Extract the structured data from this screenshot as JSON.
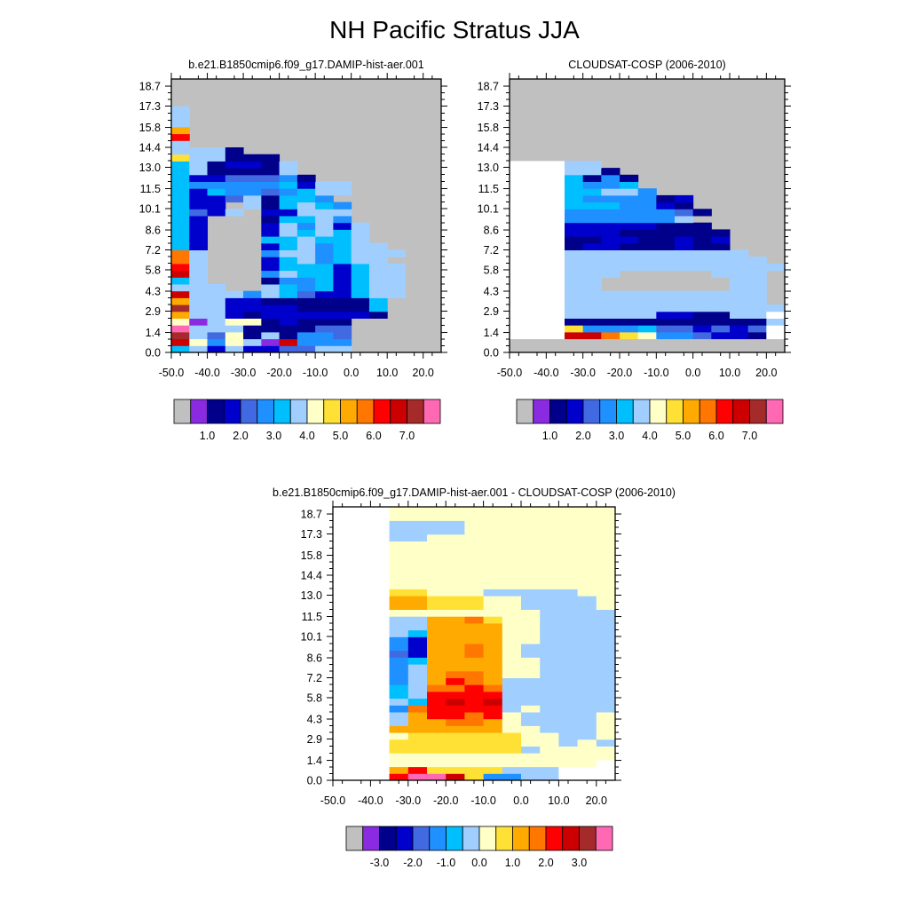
{
  "figure": {
    "title": "NH Pacific Stratus JJA"
  },
  "colors": {
    "missing": "#c0c0c0",
    "abs_palette": [
      "#c0c0c0",
      "#8a2be2",
      "#00008b",
      "#0000cd",
      "#4169e1",
      "#1e90ff",
      "#00bfff",
      "#a0cfff",
      "#ffffc8",
      "#ffe135",
      "#ffaa00",
      "#ff7700",
      "#ff0000",
      "#cc0000",
      "#a52a2a",
      "#ff69b4"
    ],
    "diff_palette": [
      "#c0c0c0",
      "#8a2be2",
      "#00008b",
      "#0000cd",
      "#4169e1",
      "#1e90ff",
      "#00bfff",
      "#a0cfff",
      "#ffffc8",
      "#ffe135",
      "#ffaa00",
      "#ff7700",
      "#ff0000",
      "#cc0000",
      "#a52a2a",
      "#ff69b4"
    ]
  },
  "chart_data": [
    {
      "type": "heatmap",
      "title": "b.e21.B1850cmip6.f09_g17.DAMIP-hist-aer.001",
      "xlabel": "",
      "ylabel": "",
      "x_ticks": [
        "-50.0",
        "-40.0",
        "-30.0",
        "-20.0",
        "-10.0",
        "0.0",
        "10.0",
        "20.0"
      ],
      "y_ticks": [
        "0.0",
        "1.4",
        "2.9",
        "4.3",
        "5.8",
        "7.2",
        "8.6",
        "10.1",
        "11.5",
        "13.0",
        "14.4",
        "15.8",
        "17.3",
        "18.7"
      ],
      "xlim": [
        -50,
        25
      ],
      "ylim": [
        0,
        19.2
      ],
      "x_bin_edges": [
        -50,
        -45,
        -40,
        -35,
        -30,
        -25,
        -20,
        -15,
        -10,
        -5,
        0,
        5,
        10,
        15,
        20,
        25
      ],
      "y_bin_edges": [
        0,
        0.48,
        0.96,
        1.44,
        1.92,
        2.4,
        2.88,
        3.36,
        3.84,
        4.32,
        4.8,
        5.28,
        5.76,
        6.24,
        6.72,
        7.2,
        7.68,
        8.16,
        8.64,
        9.12,
        9.6,
        10.08,
        10.56,
        11.04,
        11.52,
        12.0,
        12.48,
        12.96,
        13.44,
        13.92,
        14.4,
        14.88,
        15.36,
        15.84,
        16.32,
        16.8,
        17.28,
        17.76,
        18.24,
        18.72,
        19.2
      ],
      "colorbar": {
        "labels": [
          "1.0",
          "2.0",
          "3.0",
          "4.0",
          "5.0",
          "6.0",
          "7.0"
        ],
        "levels": [
          0.5,
          1.0,
          1.5,
          2.0,
          2.5,
          3.0,
          3.5,
          4.0,
          4.5,
          5.0,
          5.5,
          6.0,
          6.5,
          7.0
        ]
      },
      "rows": [
        "fgcgccddgg-----",
        "mhehg@meee-----",
        "ngdhbgbeed-----",
        "ogggbbbbdd-----",
        "haghhbcbbb-----",
        "jggcbccccccb---",
        "nggccccbbbbf---",
        "jggccbbbbbbf---",
        "mgggegfdccfgg--",
        "ggg--gfefcfgg--",
        "fg---beefcfgg--",
        "mg---egffcfgg--",
        "lg---cfffcfgg--",
        "kg---cfgefgg---",
        "kg---eggefggg--",
        "fc---cfgefgg---",
        "fc---ffgffg----",
        "fc---cgfgfg----",
        "fc---cgegcg----",
        "fc---bffge-----",
        "fdcg-ccggg-----",
        "fcc-gbfgfe-----",
        "fccdgbffe------",
        "fcfeedefgg-----",
        "feeeeefcgg-----",
        "fccdddeb-------",
        "fgbbbbg--------",
        "fgbccbg--------",
        "iggbbb---------",
        "gggb-----------",
        "g--------------",
        "l--------------",
        "j--------------",
        "g--------------",
        "g--------------",
        "g--------------",
        "---------------",
        "---------------",
        "---------------",
        "---------------"
      ]
    },
    {
      "type": "heatmap",
      "title": "CLOUDSAT-COSP (2006-2010)",
      "xlabel": "",
      "ylabel": "",
      "x_ticks": [
        "-50.0",
        "-40.0",
        "-30.0",
        "-20.0",
        "-10.0",
        "0.0",
        "10.0",
        "20.0"
      ],
      "y_ticks": [
        "0.0",
        "1.4",
        "2.9",
        "4.3",
        "5.8",
        "7.2",
        "8.6",
        "10.1",
        "11.5",
        "13.0",
        "14.4",
        "15.8",
        "17.3",
        "18.7"
      ],
      "xlim": [
        -50,
        25
      ],
      "ylim": [
        0,
        19.2
      ],
      "x_bin_edges": [
        -50,
        -45,
        -40,
        -35,
        -30,
        -25,
        -20,
        -15,
        -10,
        -5,
        0,
        5,
        10,
        15,
        20,
        25
      ],
      "y_bin_edges": [
        0,
        0.48,
        0.96,
        1.44,
        1.92,
        2.4,
        2.88,
        3.36,
        3.84,
        4.32,
        4.8,
        5.28,
        5.76,
        6.24,
        6.72,
        7.2,
        7.68,
        8.16,
        8.64,
        9.12,
        9.6,
        10.08,
        10.56,
        11.04,
        11.52,
        12.0,
        12.48,
        12.96,
        13.44,
        13.92,
        14.4,
        14.88,
        15.36,
        15.84,
        16.32,
        16.8,
        17.28,
        17.76,
        18.24,
        18.72,
        19.2
      ],
      "colorbar": {
        "labels": [
          "1.0",
          "2.0",
          "3.0",
          "4.0",
          "5.0",
          "6.0",
          "7.0"
        ],
        "levels": [
          0.5,
          1.0,
          1.5,
          2.0,
          2.5,
          3.0,
          3.5,
          4.0,
          4.5,
          5.0,
          5.5,
          6.0,
          6.5,
          7.0
        ]
      },
      "rows": [
        "",
        "",
        "###mmkiheedccb#",
        "###ieeefddcdcd#",
        "###bbbbbbbbbbbg",
        "###gggggccbbgg#",
        "###gggggggggggg",
        "###ggggggggggg-",
        "###ggggggggggg-",
        "###gg-------gg-",
        "###gg-------gg-",
        "###ggg-----ggg-",
        "###gggggggggggg",
        "###ggggggggggg-",
        "###gggggggggg--",
        "###bccbbbcbb---",
        "###bbccbbcbc---",
        "###cccbbbbbb---",
        "###cccccbbb----",
        "###eeeeeeg-----",
        "###eeeeeedb----",
        "###fffeecb-----",
        "###feeeebc-----",
        "###ffgge-------",
        "###feef--------",
        "###fbeb--------",
        "###ggb---------",
        "###gg----------",
        "---------------",
        "---------------",
        "---------------",
        "---------------",
        "---------------",
        "---------------",
        "---------------",
        "---------------",
        "---------------",
        "---------------",
        "---------------",
        "---------------"
      ]
    },
    {
      "type": "heatmap",
      "title": "b.e21.B1850cmip6.f09_g17.DAMIP-hist-aer.001 - CLOUDSAT-COSP (2006-2010)",
      "xlabel": "",
      "ylabel": "",
      "x_ticks": [
        "-50.0",
        "-40.0",
        "-30.0",
        "-20.0",
        "-10.0",
        "0.0",
        "10.0",
        "20.0"
      ],
      "y_ticks": [
        "0.0",
        "1.4",
        "2.9",
        "4.3",
        "5.8",
        "7.2",
        "8.6",
        "10.1",
        "11.5",
        "13.0",
        "14.4",
        "15.8",
        "17.3",
        "18.7"
      ],
      "xlim": [
        -50,
        25
      ],
      "ylim": [
        0,
        19.2
      ],
      "x_bin_edges": [
        -50,
        -45,
        -40,
        -35,
        -30,
        -25,
        -20,
        -15,
        -10,
        -5,
        0,
        5,
        10,
        15,
        20,
        25
      ],
      "y_bin_edges": [
        0,
        0.48,
        0.96,
        1.44,
        1.92,
        2.4,
        2.88,
        3.36,
        3.84,
        4.32,
        4.8,
        5.28,
        5.76,
        6.24,
        6.72,
        7.2,
        7.68,
        8.16,
        8.64,
        9.12,
        9.6,
        10.08,
        10.56,
        11.04,
        11.52,
        12.0,
        12.48,
        12.96,
        13.44,
        13.92,
        14.4,
        14.88,
        15.36,
        15.84,
        16.32,
        16.8,
        17.28,
        17.76,
        18.24,
        18.72,
        19.2
      ],
      "colorbar": {
        "labels": [
          "-3.0",
          "-2.0",
          "-1.0",
          "0.0",
          "1.0",
          "2.0",
          "3.0"
        ],
        "levels": [
          -3.5,
          -3.0,
          -2.5,
          -2.0,
          -1.5,
          -1.0,
          -0.5,
          0.0,
          0.5,
          1.0,
          1.5,
          2.0,
          2.5,
          3.0
        ]
      },
      "rows": [
        "###mppnjffhh...",
        "###kmjjjjhhh...",
        "###iiiiiiiiiii.",
        "###iiiiiiiiiiii",
        "###jjjjjjjhiiii",
        "###jjjjjjjiihih",
        "###ijjjjjjiihhi",
        "###kkkkkkiihhhi",
        "###hkkllkihhhhi",
        "###hkmmlmihhhhi",
        "###flmmmmhihhhh",
        "###hgmnmnhhhhhh",
        "###ghmmmmhhhhhh",
        "###ghllmlhhhhhh",
        "###fhkmlkhhhhhh",
        "###fhkllkiihhhh",
        "###fhkkkkiihhhh",
        "###fgkkkkiihhhh",
        "###edkklkihhhhh",
        "###fdkklkihhhhh",
        "###fdkkkkiihhhh",
        "###hgkkkkiihhhh",
        "###hhkkkkiihhhh",
        "###hhkkljiihhhh",
        "###iiiiiiiihhhh",
        "###kkjjjiihhhhi",
        "###kkjjjiihhhhi",
        "###jjiiihhhhhii",
        "###iiiiiiiiiiii",
        "###iiiiiiiiiiii",
        "###iiiiiiiiiiii",
        "###iiiiiiiiiiii",
        "###iiiiiiiiiiii",
        "###iiiiiiiiiiii",
        "###iiiiiiiiiiii",
        "###hhiiiiiiiiii",
        "###hhhhiiiiiiii",
        "###hhhhiiiiiiii",
        "###iiiiiiiiiiii",
        "###iiiiiiiiiiii"
      ]
    }
  ]
}
